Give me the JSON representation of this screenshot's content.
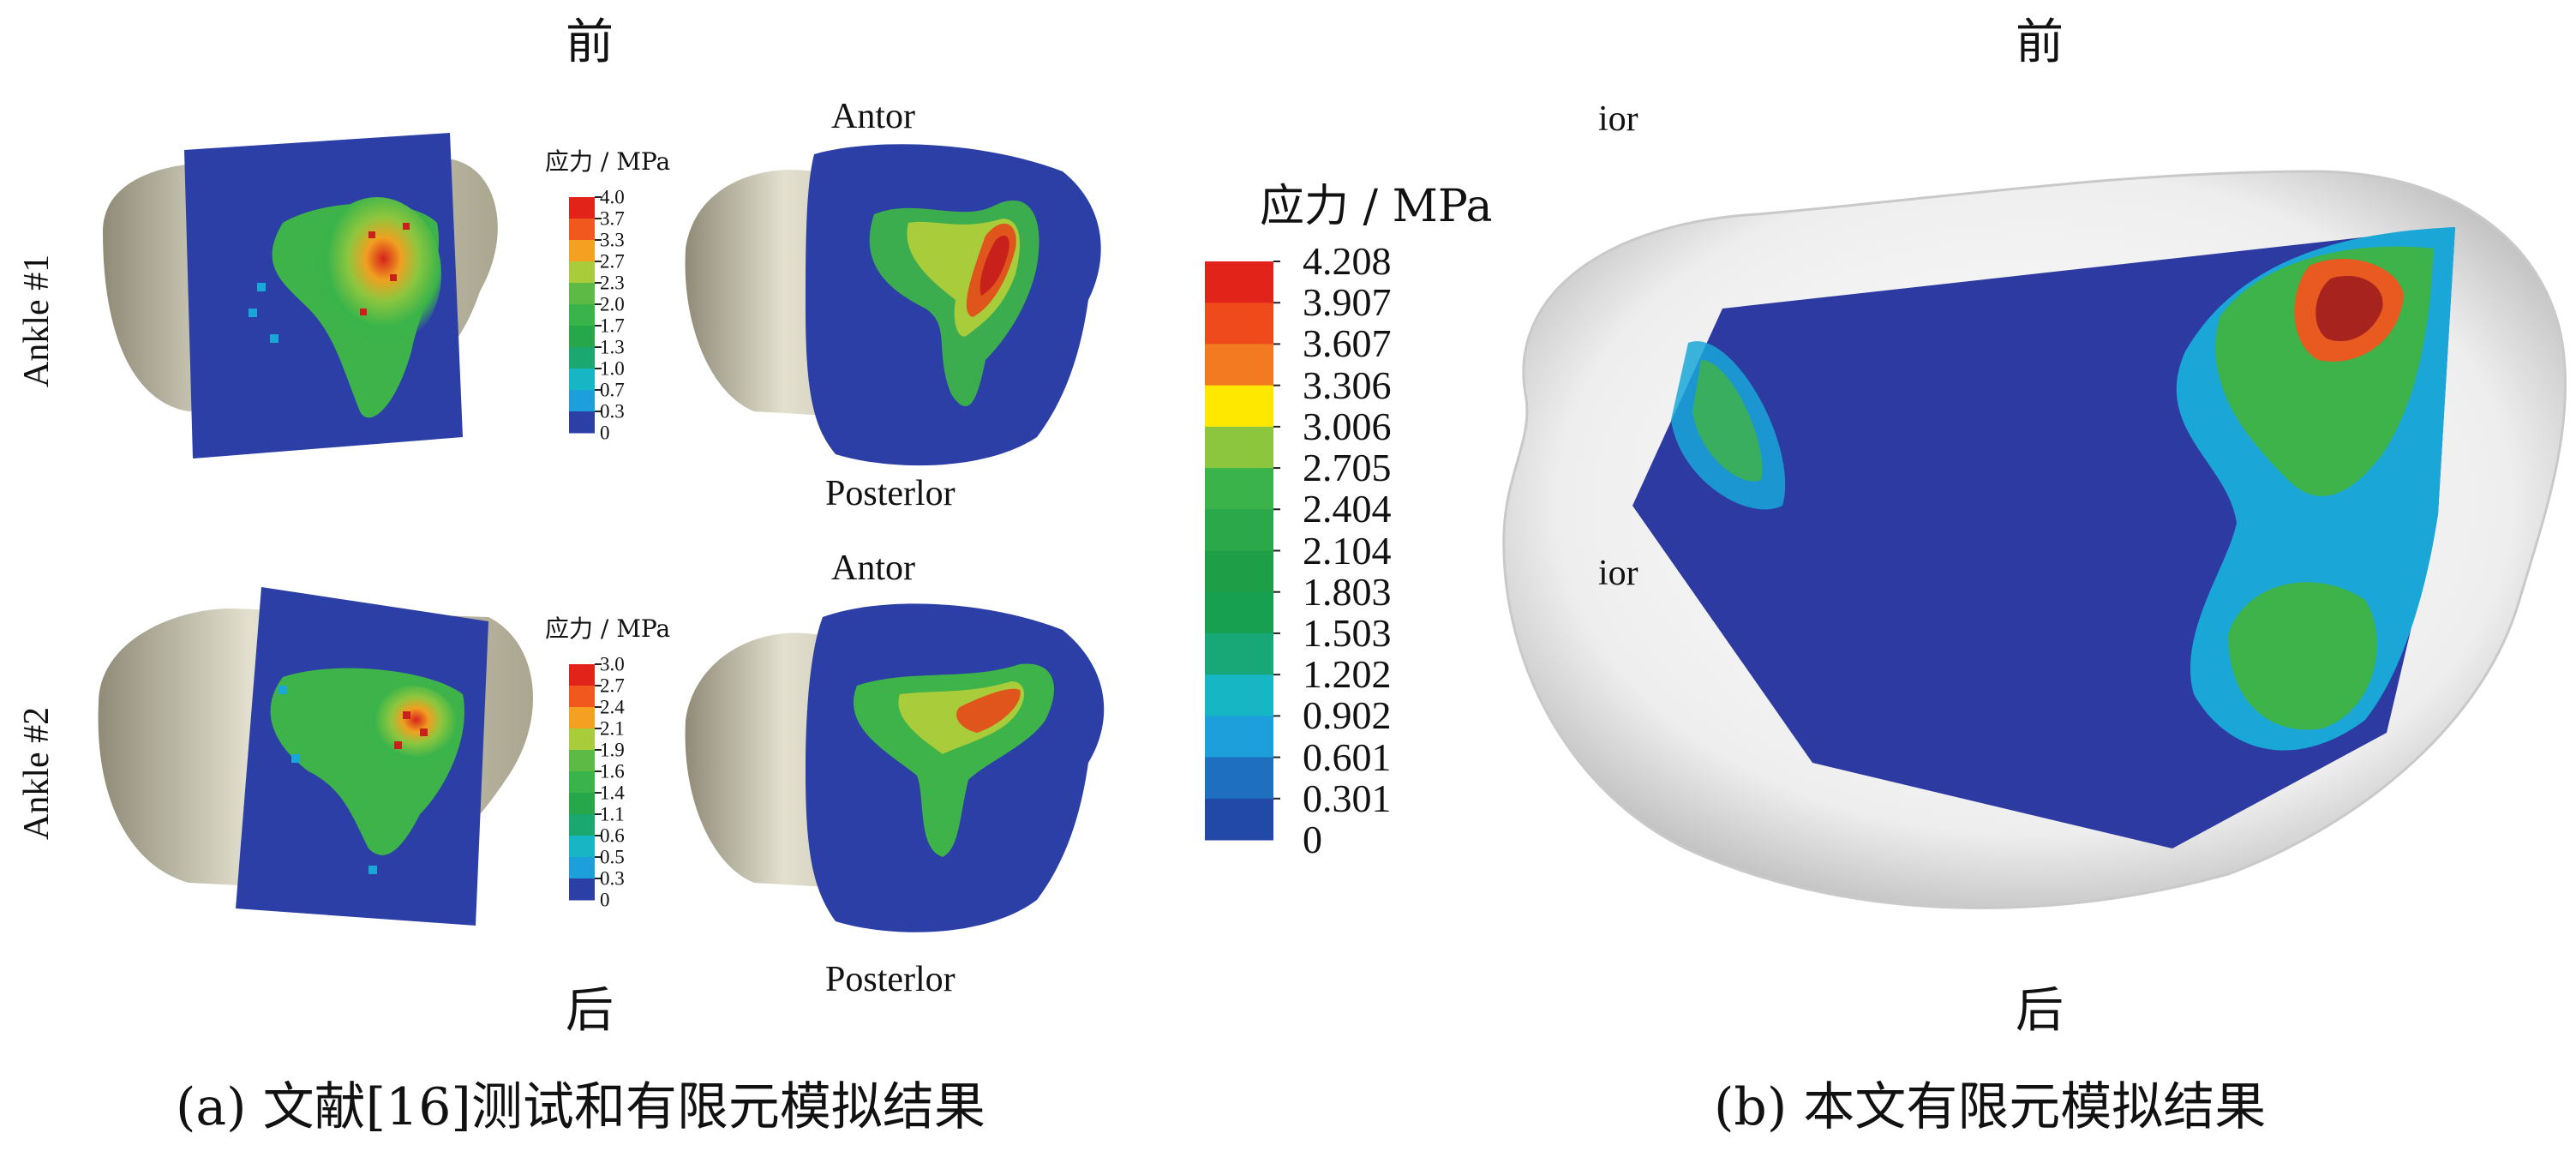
{
  "panel_a": {
    "top_dir": "前",
    "bottom_dir": "后",
    "ankle1_label": "Ankle #1",
    "ankle2_label": "Ankle #2",
    "anterior_label_1": "Antor",
    "posterior_label_1": "Posterlor",
    "anterior_label_2": "Antor",
    "posterior_label_2": "Posterlor",
    "legend1": {
      "title": "应力 / MPa",
      "ticks": [
        "4.0",
        "3.7",
        "3.3",
        "2.7",
        "2.3",
        "2.0",
        "1.7",
        "1.3",
        "1.0",
        "0.7",
        "0.3",
        "0"
      ]
    },
    "legend2": {
      "title": "应力 / MPa",
      "ticks": [
        "3.0",
        "2.7",
        "2.4",
        "2.1",
        "1.9",
        "1.6",
        "1.4",
        "1.1",
        "0.6",
        "0.5",
        "0.3",
        "0"
      ]
    },
    "caption": "(a)   文献[16]测试和有限元模拟结果"
  },
  "main_legend": {
    "title": "应力 / MPa",
    "ticks": [
      "4.208",
      "3.907",
      "3.607",
      "3.306",
      "3.006",
      "2.705",
      "2.404",
      "2.104",
      "1.803",
      "1.503",
      "1.202",
      "0.902",
      "0.601",
      "0.301",
      "0"
    ],
    "colors": [
      "#e2231a",
      "#ee4a1c",
      "#f47a22",
      "#ffe800",
      "#8cc63e",
      "#3ab44a",
      "#2aa84a",
      "#1f9e48",
      "#17a050",
      "#18a878",
      "#16b6c4",
      "#1d9fdb",
      "#1e6fc0",
      "#2248a8",
      "#27389a"
    ]
  },
  "panel_b": {
    "top_dir": "前",
    "bottom_dir": "后",
    "partial_label_1": "ior",
    "partial_label_2": "ior",
    "caption": "(b)  本文有限元模拟结果"
  },
  "colors": {
    "bone": "#c9c5ad",
    "blue": "#2b3fa6",
    "green": "#3db34a",
    "red": "#d8221c"
  }
}
